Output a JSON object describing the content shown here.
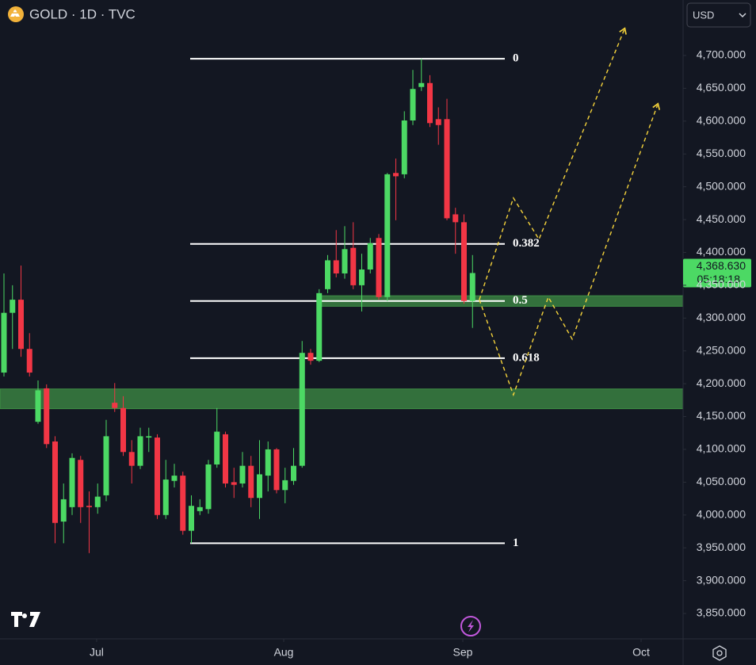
{
  "chart_data": {
    "type": "candlestick",
    "title": "GOLD · 1D · TVC",
    "currency": "USD",
    "colors": {
      "up": "#4cd964",
      "down": "#f23645",
      "fib": "#ffffff",
      "zone": "#3f8f45",
      "projection": "#f5d33b",
      "last_price": "#4cd964"
    },
    "candles": {
      "x": [
        0,
        1,
        2,
        3,
        4,
        5,
        6,
        7,
        8,
        9,
        10,
        11,
        12,
        13,
        14,
        15,
        16,
        17,
        18,
        19,
        20,
        21,
        22,
        23,
        24,
        25,
        26,
        27,
        28,
        29,
        30,
        31,
        32,
        33,
        34,
        35,
        36,
        37,
        38,
        39,
        40,
        41,
        42,
        43,
        44,
        45,
        46,
        47,
        48,
        49,
        50,
        51,
        52,
        53,
        54,
        55
      ],
      "open": [
        4217,
        4308,
        4328,
        4253,
        4142,
        4193,
        4112,
        3990,
        4012,
        4084,
        4014,
        4012,
        4030,
        4171,
        4163,
        4096,
        4075,
        4118,
        4118,
        4000,
        4052,
        4060,
        3976,
        4006,
        4009,
        4077,
        4123,
        4050,
        4048,
        4075,
        4026,
        4060,
        4100,
        4038,
        4052,
        4075,
        4247,
        4235,
        4344,
        4388,
        4368,
        4407,
        4350,
        4374,
        4422,
        4332,
        4521,
        4519,
        4601,
        4652,
        4658,
        4603,
        4603,
        4458,
        4446,
        4326
      ],
      "high": [
        4368,
        4350,
        4380,
        4277,
        4205,
        4199,
        4120,
        4048,
        4094,
        4090,
        4036,
        4048,
        4145,
        4201,
        4181,
        4114,
        4133,
        4133,
        4123,
        4084,
        4078,
        4066,
        4030,
        4024,
        4084,
        4163,
        4127,
        4072,
        4096,
        4090,
        4114,
        4112,
        4102,
        4072,
        4102,
        4265,
        4253,
        4344,
        4396,
        4434,
        4440,
        4446,
        4398,
        4422,
        4428,
        4521,
        4543,
        4615,
        4678,
        4695,
        4670,
        4621,
        4634,
        4468,
        4458,
        4396
      ],
      "low": [
        4211,
        4253,
        4241,
        4211,
        4139,
        4102,
        3957,
        3957,
        4000,
        3988,
        3942,
        4002,
        4021,
        4157,
        4090,
        4048,
        4070,
        4096,
        3994,
        3994,
        4042,
        3970,
        3957,
        4000,
        4002,
        4072,
        4042,
        4026,
        4042,
        4012,
        3994,
        4036,
        4033,
        4018,
        4046,
        4072,
        4229,
        4233,
        4338,
        4362,
        4360,
        4344,
        4310,
        4368,
        4328,
        4326,
        4449,
        4513,
        4594,
        4646,
        4591,
        4564,
        4449,
        4398,
        4322,
        4285
      ],
      "close": [
        4308,
        4328,
        4253,
        4217,
        4190,
        4108,
        3988,
        4024,
        4087,
        4012,
        4012,
        4028,
        4120,
        4163,
        4096,
        4075,
        4120,
        4120,
        4000,
        4054,
        4060,
        3976,
        4014,
        4012,
        4077,
        4127,
        4048,
        4046,
        4075,
        4026,
        4062,
        4100,
        4038,
        4053,
        4075,
        4247,
        4235,
        4338,
        4388,
        4368,
        4405,
        4350,
        4374,
        4414,
        4332,
        4519,
        4516,
        4601,
        4649,
        4658,
        4597,
        4594,
        4452,
        4446,
        4326,
        4368.63
      ]
    },
    "last_price": {
      "value": 4368.63,
      "label": "4,368.630"
    },
    "countdown": "05:18:18",
    "fib": {
      "x_start": 21.86,
      "x_end": 58.79,
      "levels": [
        {
          "label": "0",
          "value": 4695
        },
        {
          "label": "0.382",
          "value": 4413
        },
        {
          "label": "0.5",
          "value": 4326
        },
        {
          "label": "0.618",
          "value": 4239
        },
        {
          "label": "1",
          "value": 3957
        }
      ]
    },
    "zones": [
      {
        "x_start": 37.2,
        "top": 4334,
        "bottom": 4318
      },
      {
        "top": 4192,
        "bottom": 4162
      }
    ],
    "projections": [
      {
        "x": [
          55.8,
          59.8,
          62.8,
          72.8
        ],
        "y": [
          4328,
          4483,
          4420,
          4739
        ]
      },
      {
        "x": [
          55.8,
          59.8,
          63.9,
          66.7,
          76.7
        ],
        "y": [
          4328,
          4183,
          4332,
          4268,
          4624
        ]
      }
    ],
    "xlim": [
      -0.465,
      79.72
    ],
    "xticks": [
      {
        "value": 10.88,
        "label": "Jul"
      },
      {
        "value": 32.84,
        "label": "Aug"
      },
      {
        "value": 53.86,
        "label": "Sep"
      },
      {
        "value": 74.79,
        "label": "Oct"
      }
    ],
    "ylim": [
      3811.4,
      4784.5
    ],
    "yticks": [
      {
        "value": 3850,
        "label": "3,850.000"
      },
      {
        "value": 3900,
        "label": "3,900.000"
      },
      {
        "value": 3950,
        "label": "3,950.000"
      },
      {
        "value": 4000,
        "label": "4,000.000"
      },
      {
        "value": 4050,
        "label": "4,050.000"
      },
      {
        "value": 4100,
        "label": "4,100.000"
      },
      {
        "value": 4150,
        "label": "4,150.000"
      },
      {
        "value": 4200,
        "label": "4,200.000"
      },
      {
        "value": 4250,
        "label": "4,250.000"
      },
      {
        "value": 4300,
        "label": "4,300.000"
      },
      {
        "value": 4350,
        "label": "4,350.000"
      },
      {
        "value": 4400,
        "label": "4,400.000"
      },
      {
        "value": 4450,
        "label": "4,450.000"
      },
      {
        "value": 4500,
        "label": "4,500.000"
      },
      {
        "value": 4550,
        "label": "4,550.000"
      },
      {
        "value": 4600,
        "label": "4,600.000"
      },
      {
        "value": 4650,
        "label": "4,650.000"
      },
      {
        "value": 4700,
        "label": "4,700.000"
      }
    ]
  }
}
